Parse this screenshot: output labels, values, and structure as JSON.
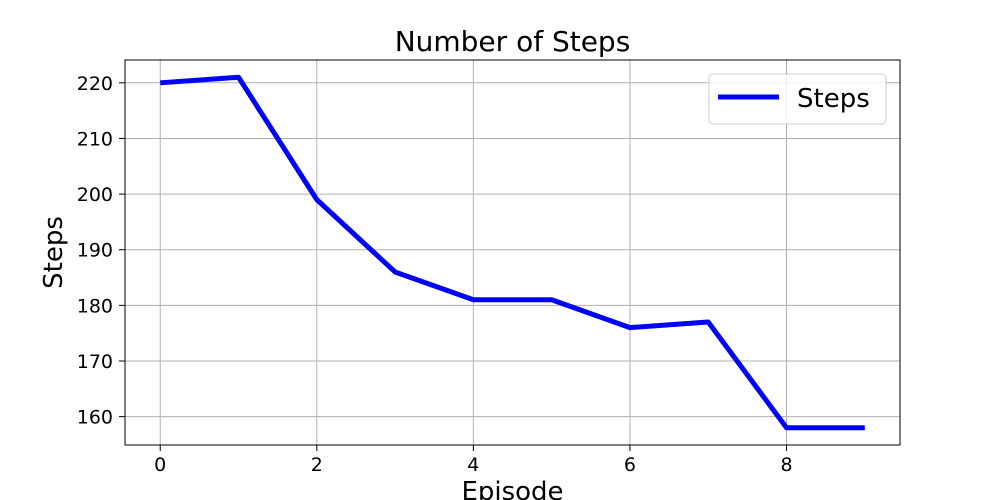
{
  "chart_data": {
    "type": "line",
    "title": "Number of Steps",
    "xlabel": "Episode",
    "ylabel": "Steps",
    "x": [
      0,
      1,
      2,
      3,
      4,
      5,
      6,
      7,
      8,
      9
    ],
    "series": [
      {
        "name": "Steps",
        "color": "#0000ff",
        "values": [
          220,
          221,
          199,
          186,
          181,
          181,
          176,
          177,
          158,
          158
        ]
      }
    ],
    "xlim": [
      -0.45,
      9.45
    ],
    "ylim": [
      154.9,
      224.1
    ],
    "xticks": [
      0,
      2,
      4,
      6,
      8
    ],
    "yticks": [
      160,
      170,
      180,
      190,
      200,
      210,
      220
    ],
    "grid": true,
    "legend_position": "top-right"
  }
}
